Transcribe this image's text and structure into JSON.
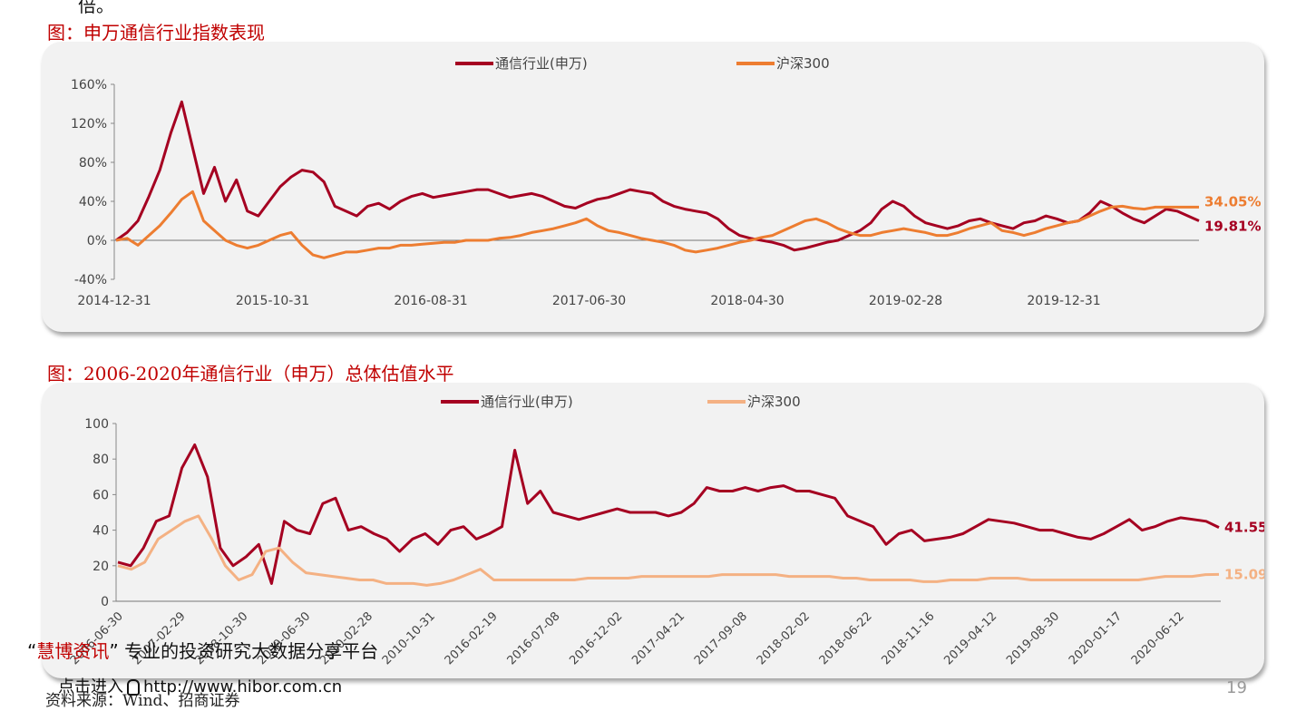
{
  "top_text": "倍。",
  "chart_data": [
    {
      "type": "line",
      "title": "图：申万通信行业指数表现",
      "x_tick_labels": [
        "2014-12-31",
        "2015-10-31",
        "2016-08-31",
        "2017-06-30",
        "2018-04-30",
        "2019-02-28",
        "2019-12-31"
      ],
      "y_tick_labels": [
        "160%",
        "120%",
        "80%",
        "40%",
        "0%",
        "-40%"
      ],
      "ylim": [
        -40,
        160
      ],
      "series": [
        {
          "name": "通信行业(申万)",
          "color": "#a50021",
          "end_label": "19.81%",
          "values": [
            0,
            8,
            20,
            45,
            72,
            110,
            142,
            95,
            48,
            75,
            40,
            62,
            30,
            25,
            40,
            55,
            65,
            72,
            70,
            60,
            35,
            30,
            25,
            35,
            38,
            32,
            40,
            45,
            48,
            44,
            46,
            48,
            50,
            52,
            52,
            48,
            44,
            46,
            48,
            45,
            40,
            35,
            33,
            38,
            42,
            44,
            48,
            52,
            50,
            48,
            40,
            35,
            32,
            30,
            28,
            22,
            12,
            5,
            2,
            0,
            -2,
            -5,
            -10,
            -8,
            -5,
            -2,
            0,
            5,
            10,
            18,
            32,
            40,
            35,
            25,
            18,
            15,
            12,
            15,
            20,
            22,
            18,
            15,
            12,
            18,
            20,
            25,
            22,
            18,
            20,
            28,
            40,
            35,
            28,
            22,
            18,
            25,
            32,
            30,
            25,
            20
          ]
        },
        {
          "name": "沪深300",
          "color": "#ed7d31",
          "end_label": "34.05%",
          "values": [
            0,
            2,
            -5,
            5,
            15,
            28,
            42,
            50,
            20,
            10,
            0,
            -5,
            -8,
            -5,
            0,
            5,
            8,
            -5,
            -15,
            -18,
            -15,
            -12,
            -12,
            -10,
            -8,
            -8,
            -5,
            -5,
            -4,
            -3,
            -2,
            -2,
            0,
            0,
            0,
            2,
            3,
            5,
            8,
            10,
            12,
            15,
            18,
            22,
            15,
            10,
            8,
            5,
            2,
            0,
            -2,
            -5,
            -10,
            -12,
            -10,
            -8,
            -5,
            -2,
            0,
            3,
            5,
            10,
            15,
            20,
            22,
            18,
            12,
            8,
            5,
            5,
            8,
            10,
            12,
            10,
            8,
            5,
            5,
            8,
            12,
            15,
            18,
            10,
            8,
            5,
            8,
            12,
            15,
            18,
            20,
            25,
            30,
            34,
            35,
            33,
            32,
            34,
            34,
            34,
            34,
            34
          ]
        }
      ]
    },
    {
      "type": "line",
      "title": "图：2006-2020年通信行业（申万）总体估值水平",
      "x_tick_labels": [
        "2006-06-30",
        "2007-02-29",
        "2008-10-30",
        "2009-06-30",
        "2010-02-28",
        "2010-10-31",
        "2016-02-19",
        "2016-07-08",
        "2016-12-02",
        "2017-04-21",
        "2017-09-08",
        "2018-02-02",
        "2018-06-22",
        "2018-11-16",
        "2019-04-12",
        "2019-08-30",
        "2020-01-17",
        "2020-06-12"
      ],
      "y_tick_labels": [
        "100",
        "80",
        "60",
        "40",
        "20",
        "0"
      ],
      "ylim": [
        0,
        100
      ],
      "series": [
        {
          "name": "通信行业(申万)",
          "color": "#a50021",
          "end_label": "41.55",
          "values": [
            22,
            20,
            30,
            45,
            48,
            75,
            88,
            70,
            30,
            20,
            25,
            32,
            10,
            45,
            40,
            38,
            55,
            58,
            40,
            42,
            38,
            35,
            28,
            35,
            38,
            32,
            40,
            42,
            35,
            38,
            42,
            85,
            55,
            62,
            50,
            48,
            46,
            48,
            50,
            52,
            50,
            50,
            50,
            48,
            50,
            55,
            64,
            62,
            62,
            64,
            62,
            64,
            65,
            62,
            62,
            60,
            58,
            48,
            45,
            42,
            32,
            38,
            40,
            34,
            35,
            36,
            38,
            42,
            46,
            45,
            44,
            42,
            40,
            40,
            38,
            36,
            35,
            38,
            42,
            46,
            40,
            42,
            45,
            47,
            46,
            45,
            41.55
          ]
        },
        {
          "name": "沪深300",
          "color": "#f4b183",
          "end_label": "15.09",
          "values": [
            20,
            18,
            22,
            35,
            40,
            45,
            48,
            35,
            20,
            12,
            15,
            28,
            30,
            22,
            16,
            15,
            14,
            13,
            12,
            12,
            10,
            10,
            10,
            9,
            10,
            12,
            15,
            18,
            12,
            12,
            12,
            12,
            12,
            12,
            12,
            13,
            13,
            13,
            13,
            14,
            14,
            14,
            14,
            14,
            14,
            15,
            15,
            15,
            15,
            15,
            14,
            14,
            14,
            14,
            13,
            13,
            12,
            12,
            12,
            12,
            11,
            11,
            12,
            12,
            12,
            13,
            13,
            13,
            12,
            12,
            12,
            12,
            12,
            12,
            12,
            12,
            12,
            13,
            14,
            14,
            14,
            15,
            15.09
          ]
        }
      ]
    }
  ],
  "watermark": {
    "quote_open": "“",
    "brand": "慧博资讯",
    "quote_close": "”",
    "tagline": " 专业的投资研究大数据分享平台",
    "link_prefix": "点击进入",
    "link": "http://www.hibor.com.cn"
  },
  "source": "资料来源：Wind、招商证券",
  "page_number": "19"
}
